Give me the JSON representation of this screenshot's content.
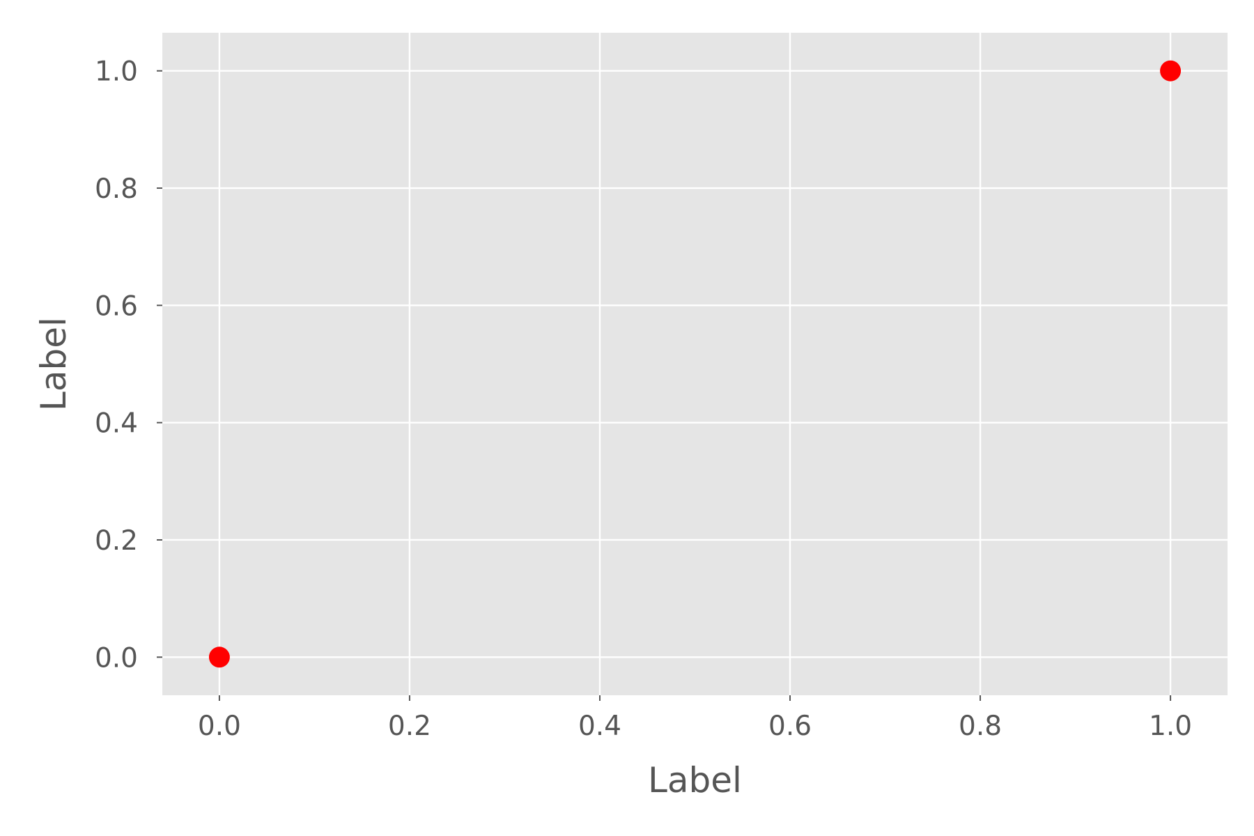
{
  "chart_data": {
    "type": "scatter",
    "title": "",
    "xlabel": "Label",
    "ylabel": "Label",
    "xlim": [
      -0.06,
      1.06
    ],
    "ylim": [
      -0.065,
      1.065
    ],
    "x_ticks": [
      0.0,
      0.2,
      0.4,
      0.6,
      0.8,
      1.0
    ],
    "y_ticks": [
      0.0,
      0.2,
      0.4,
      0.6,
      0.8,
      1.0
    ],
    "x_tick_labels": [
      "0.0",
      "0.2",
      "0.4",
      "0.6",
      "0.8",
      "1.0"
    ],
    "y_tick_labels": [
      "0.0",
      "0.2",
      "0.4",
      "0.6",
      "0.8",
      "1.0"
    ],
    "grid": true,
    "series": [
      {
        "points": [
          {
            "x": 0.0,
            "y": 0.0
          },
          {
            "x": 1.0,
            "y": 1.0
          }
        ],
        "color": "#ff0000"
      }
    ],
    "plot_background": "#e5e5e5",
    "grid_color": "#ffffff",
    "text_color": "#555555"
  }
}
